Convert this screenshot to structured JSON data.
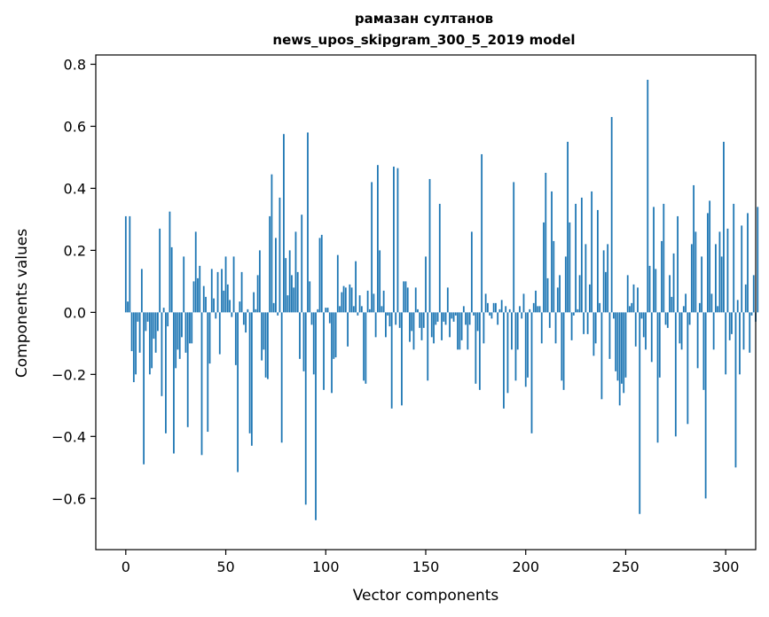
{
  "chart_data": {
    "type": "bar",
    "title": "рамазан султанов",
    "subtitle": "news_upos_skipgram_300_5_2019 model",
    "xlabel": "Vector components",
    "ylabel": "Components values",
    "xlim": [
      -15,
      315
    ],
    "ylim": [
      -0.765,
      0.83
    ],
    "xticks": [
      0,
      50,
      100,
      150,
      200,
      250,
      300
    ],
    "xtick_labels": [
      "0",
      "50",
      "100",
      "150",
      "200",
      "250",
      "300"
    ],
    "yticks": [
      -0.6,
      -0.4,
      -0.2,
      0.0,
      0.2,
      0.4,
      0.6,
      0.8
    ],
    "ytick_labels": [
      "−0.6",
      "−0.4",
      "−0.2",
      "0.0",
      "0.2",
      "0.4",
      "0.6",
      "0.8"
    ],
    "bar_color": "#1f77b4",
    "values": [
      0.31,
      0.035,
      0.31,
      -0.125,
      -0.225,
      -0.2,
      -0.03,
      -0.13,
      0.14,
      -0.49,
      -0.06,
      -0.03,
      -0.2,
      -0.18,
      -0.085,
      -0.13,
      -0.06,
      0.27,
      -0.27,
      0.015,
      -0.39,
      -0.045,
      0.325,
      0.21,
      -0.455,
      -0.18,
      -0.12,
      -0.15,
      -0.08,
      0.18,
      -0.13,
      -0.37,
      -0.1,
      -0.1,
      0.1,
      0.26,
      0.11,
      0.15,
      -0.46,
      0.085,
      0.05,
      -0.385,
      -0.165,
      0.14,
      0.045,
      -0.02,
      0.13,
      -0.135,
      0.14,
      0.07,
      0.18,
      0.09,
      0.04,
      -0.015,
      0.18,
      -0.17,
      -0.515,
      0.035,
      0.13,
      -0.04,
      -0.065,
      0.01,
      -0.39,
      -0.43,
      0.065,
      0.01,
      0.12,
      0.2,
      -0.155,
      -0.12,
      -0.21,
      -0.215,
      0.31,
      0.445,
      0.03,
      0.24,
      -0.01,
      0.37,
      -0.42,
      0.575,
      0.175,
      0.055,
      0.2,
      0.12,
      0.08,
      0.26,
      0.13,
      -0.15,
      0.315,
      -0.19,
      -0.62,
      0.58,
      0.1,
      -0.04,
      -0.2,
      -0.67,
      0.01,
      0.24,
      0.25,
      -0.25,
      0.015,
      0.015,
      -0.035,
      -0.26,
      -0.15,
      -0.145,
      0.185,
      0.02,
      0.065,
      0.085,
      0.08,
      -0.11,
      0.09,
      0.08,
      0.02,
      0.165,
      -0.01,
      0.055,
      0.02,
      -0.22,
      -0.23,
      0.07,
      0.01,
      0.42,
      0.06,
      -0.08,
      0.475,
      0.2,
      0.02,
      0.07,
      -0.08,
      -0.01,
      -0.045,
      -0.31,
      0.47,
      -0.04,
      0.465,
      -0.05,
      -0.3,
      0.1,
      0.1,
      0.08,
      -0.095,
      -0.06,
      -0.12,
      0.08,
      0.01,
      -0.05,
      -0.09,
      -0.05,
      0.18,
      -0.22,
      0.43,
      -0.08,
      -0.1,
      -0.04,
      -0.03,
      0.35,
      -0.09,
      -0.03,
      -0.04,
      0.08,
      -0.08,
      -0.02,
      -0.03,
      -0.01,
      -0.12,
      -0.12,
      -0.09,
      0.02,
      -0.04,
      -0.12,
      -0.04,
      0.26,
      -0.01,
      -0.23,
      -0.06,
      -0.25,
      0.51,
      -0.1,
      0.06,
      0.03,
      -0.01,
      -0.02,
      0.03,
      0.03,
      -0.04,
      0.01,
      0.04,
      -0.31,
      0.02,
      -0.26,
      0.01,
      -0.12,
      0.42,
      -0.22,
      -0.12,
      0.02,
      -0.02,
      0.06,
      -0.24,
      -0.21,
      0.01,
      -0.39,
      0.03,
      0.07,
      0.02,
      0.02,
      -0.1,
      0.29,
      0.45,
      0.11,
      -0.05,
      0.39,
      0.23,
      -0.1,
      0.08,
      0.12,
      -0.22,
      -0.25,
      0.18,
      0.55,
      0.29,
      -0.09,
      -0.01,
      0.35,
      0.01,
      0.12,
      0.37,
      -0.07,
      0.22,
      -0.07,
      0.09,
      0.39,
      -0.14,
      -0.1,
      0.33,
      0.03,
      -0.28,
      0.2,
      0.13,
      0.22,
      -0.15,
      0.63,
      -0.02,
      -0.19,
      -0.22,
      -0.3,
      -0.23,
      -0.26,
      -0.21,
      0.12,
      0.02,
      0.03,
      0.09,
      -0.11,
      0.08,
      -0.65,
      -0.02,
      -0.08,
      -0.12,
      0.75,
      0.15,
      -0.16,
      0.34,
      0.14,
      -0.42,
      -0.21,
      0.23,
      0.35,
      -0.04,
      -0.05,
      0.12,
      0.05,
      0.19,
      -0.4,
      0.31,
      -0.1,
      -0.12,
      0.02,
      0.06,
      -0.36,
      -0.04,
      0.22,
      0.41,
      0.26,
      -0.18,
      0.03,
      0.18,
      -0.25,
      -0.6,
      0.32,
      0.36,
      0.06,
      -0.12,
      0.22,
      0.02,
      0.26,
      0.18,
      0.55,
      -0.2,
      0.27,
      -0.09,
      -0.07,
      0.35,
      -0.5,
      0.04,
      -0.2,
      0.28,
      -0.12,
      0.09,
      0.32,
      -0.13,
      -0.01,
      0.12,
      -0.03,
      0.34
    ]
  }
}
